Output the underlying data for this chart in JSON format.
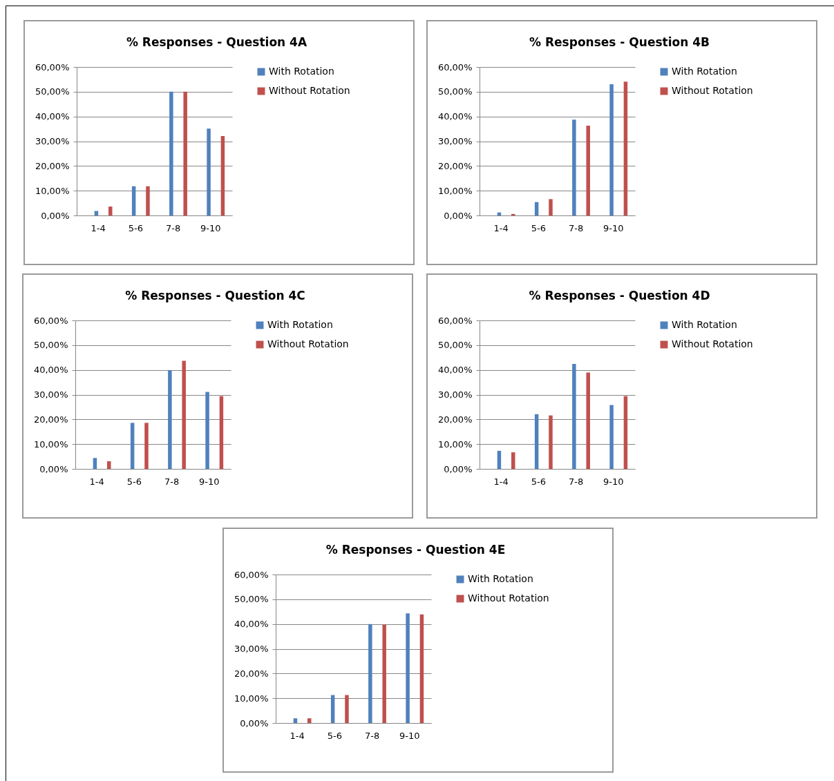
{
  "chart_data": [
    {
      "type": "bar",
      "title": "% Responses - Question 4A",
      "categories": [
        "1-4",
        "5-6",
        "7-8",
        "9-10"
      ],
      "series": [
        {
          "name": "With Rotation",
          "color": "#4f81bd",
          "values": [
            1.8,
            11.8,
            50,
            35.1
          ]
        },
        {
          "name": "Without Rotation",
          "color": "#c0504d",
          "values": [
            3.6,
            11.8,
            50,
            32.1
          ]
        }
      ],
      "ylim": [
        0,
        60
      ],
      "yticks": [
        {
          "value": 0,
          "label": "0,00%"
        },
        {
          "value": 10,
          "label": "10,00%"
        },
        {
          "value": 20,
          "label": "20,00%"
        },
        {
          "value": 30,
          "label": "30,00%"
        },
        {
          "value": 40,
          "label": "40,00%"
        },
        {
          "value": 50,
          "label": "50,00%"
        },
        {
          "value": 60,
          "label": "60,00%"
        }
      ],
      "grid": "y",
      "legend": "right"
    },
    {
      "type": "bar",
      "title": "% Responses - Question 4B",
      "categories": [
        "1-4",
        "5-6",
        "7-8",
        "9-10"
      ],
      "series": [
        {
          "name": "With Rotation",
          "color": "#4f81bd",
          "values": [
            1.2,
            5.4,
            38.7,
            53
          ]
        },
        {
          "name": "Without Rotation",
          "color": "#c0504d",
          "values": [
            0.6,
            6.6,
            36.3,
            54.1
          ]
        }
      ],
      "ylim": [
        0,
        60
      ],
      "yticks": [
        {
          "value": 0,
          "label": "0,00%"
        },
        {
          "value": 10,
          "label": "10,00%"
        },
        {
          "value": 20,
          "label": "20,00%"
        },
        {
          "value": 30,
          "label": "30,00%"
        },
        {
          "value": 40,
          "label": "40,00%"
        },
        {
          "value": 50,
          "label": "50,00%"
        },
        {
          "value": 60,
          "label": "60,00%"
        }
      ],
      "grid": "y",
      "legend": "right"
    },
    {
      "type": "bar",
      "title": "% Responses - Question 4C",
      "categories": [
        "1-4",
        "5-6",
        "7-8",
        "9-10"
      ],
      "series": [
        {
          "name": "With Rotation",
          "color": "#4f81bd",
          "values": [
            4.4,
            18.6,
            39.9,
            31.1
          ]
        },
        {
          "name": "Without Rotation",
          "color": "#c0504d",
          "values": [
            3.1,
            18.6,
            43.7,
            29.4
          ]
        }
      ],
      "ylim": [
        0,
        60
      ],
      "yticks": [
        {
          "value": 0,
          "label": "0,00%"
        },
        {
          "value": 10,
          "label": "10,00%"
        },
        {
          "value": 20,
          "label": "20,00%"
        },
        {
          "value": 30,
          "label": "30,00%"
        },
        {
          "value": 40,
          "label": "40,00%"
        },
        {
          "value": 50,
          "label": "50,00%"
        },
        {
          "value": 60,
          "label": "60,00%"
        }
      ],
      "grid": "y",
      "legend": "right"
    },
    {
      "type": "bar",
      "title": "% Responses - Question 4D",
      "categories": [
        "1-4",
        "5-6",
        "7-8",
        "9-10"
      ],
      "series": [
        {
          "name": "With Rotation",
          "color": "#4f81bd",
          "values": [
            7.3,
            22.1,
            42.4,
            25.8
          ]
        },
        {
          "name": "Without Rotation",
          "color": "#c0504d",
          "values": [
            6.7,
            21.6,
            38.9,
            29.4
          ]
        }
      ],
      "ylim": [
        0,
        60
      ],
      "yticks": [
        {
          "value": 0,
          "label": "0,00%"
        },
        {
          "value": 10,
          "label": "10,00%"
        },
        {
          "value": 20,
          "label": "20,00%"
        },
        {
          "value": 30,
          "label": "30,00%"
        },
        {
          "value": 40,
          "label": "40,00%"
        },
        {
          "value": 50,
          "label": "50,00%"
        },
        {
          "value": 60,
          "label": "60,00%"
        }
      ],
      "grid": "y",
      "legend": "right"
    },
    {
      "type": "bar",
      "title": "% Responses - Question 4E",
      "categories": [
        "1-4",
        "5-6",
        "7-8",
        "9-10"
      ],
      "series": [
        {
          "name": "With Rotation",
          "color": "#4f81bd",
          "values": [
            1.9,
            11.3,
            40,
            44.3
          ]
        },
        {
          "name": "Without Rotation",
          "color": "#c0504d",
          "values": [
            1.9,
            11.3,
            39.7,
            43.9
          ]
        }
      ],
      "ylim": [
        0,
        60
      ],
      "yticks": [
        {
          "value": 0,
          "label": "0,00%"
        },
        {
          "value": 10,
          "label": "10,00%"
        },
        {
          "value": 20,
          "label": "20,00%"
        },
        {
          "value": 30,
          "label": "30,00%"
        },
        {
          "value": 40,
          "label": "40,00%"
        },
        {
          "value": 50,
          "label": "50,00%"
        },
        {
          "value": 60,
          "label": "60,00%"
        }
      ],
      "grid": "y",
      "legend": "right"
    }
  ]
}
